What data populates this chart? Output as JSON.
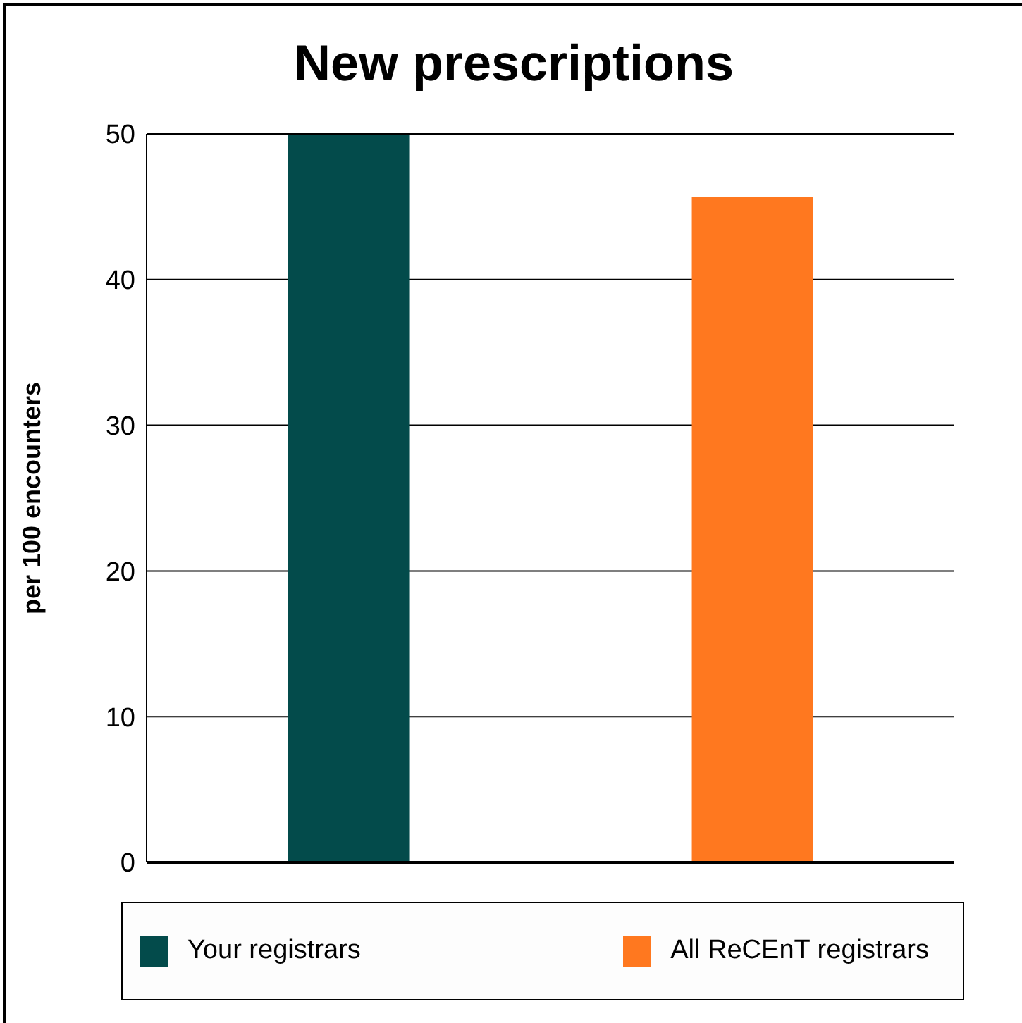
{
  "chart_data": {
    "type": "bar",
    "title": "New prescriptions",
    "ylabel": "per 100 encounters",
    "categories": [
      null,
      null
    ],
    "series": [
      {
        "name": "Your registrars",
        "color": "#034b4b",
        "values": [
          50,
          null
        ]
      },
      {
        "name": "All ReCEnT registrars",
        "color": "#ff781f",
        "values": [
          null,
          45.7
        ]
      }
    ],
    "ylim": [
      0,
      50
    ],
    "yticks": [
      0,
      10,
      20,
      30,
      40,
      50
    ],
    "grid": "y",
    "legend": "bottom"
  }
}
